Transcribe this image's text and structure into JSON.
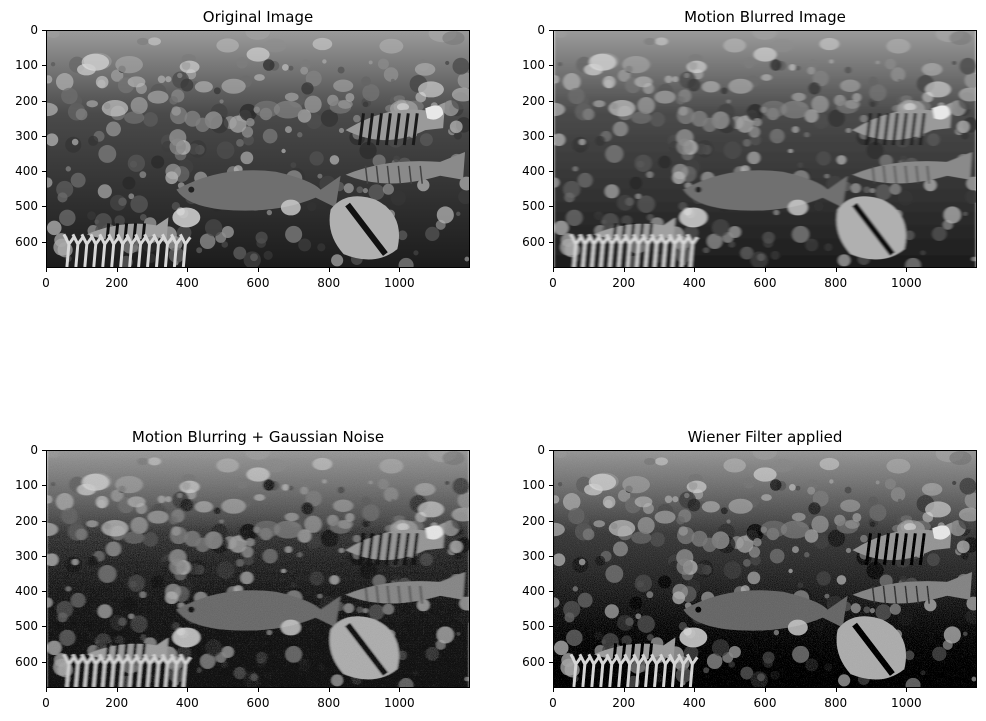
{
  "figure": {
    "panels": [
      {
        "title": "Original Image",
        "variant": "original",
        "y_ticks": [
          "0",
          "100",
          "200",
          "300",
          "400",
          "500",
          "600"
        ],
        "x_ticks": [
          "0",
          "200",
          "400",
          "600",
          "800",
          "1000"
        ]
      },
      {
        "title": "Motion Blurred Image",
        "variant": "blurred",
        "y_ticks": [
          "0",
          "100",
          "200",
          "300",
          "400",
          "500",
          "600"
        ],
        "x_ticks": [
          "0",
          "200",
          "400",
          "600",
          "800",
          "1000"
        ]
      },
      {
        "title": "Motion Blurring + Gaussian Noise",
        "variant": "noisy",
        "y_ticks": [
          "0",
          "100",
          "200",
          "300",
          "400",
          "500",
          "600"
        ],
        "x_ticks": [
          "0",
          "200",
          "400",
          "600",
          "800",
          "1000"
        ]
      },
      {
        "title": "Wiener Filter applied",
        "variant": "wiener",
        "y_ticks": [
          "0",
          "100",
          "200",
          "300",
          "400",
          "500",
          "600"
        ],
        "x_ticks": [
          "0",
          "200",
          "400",
          "600",
          "800",
          "1000"
        ]
      }
    ]
  }
}
